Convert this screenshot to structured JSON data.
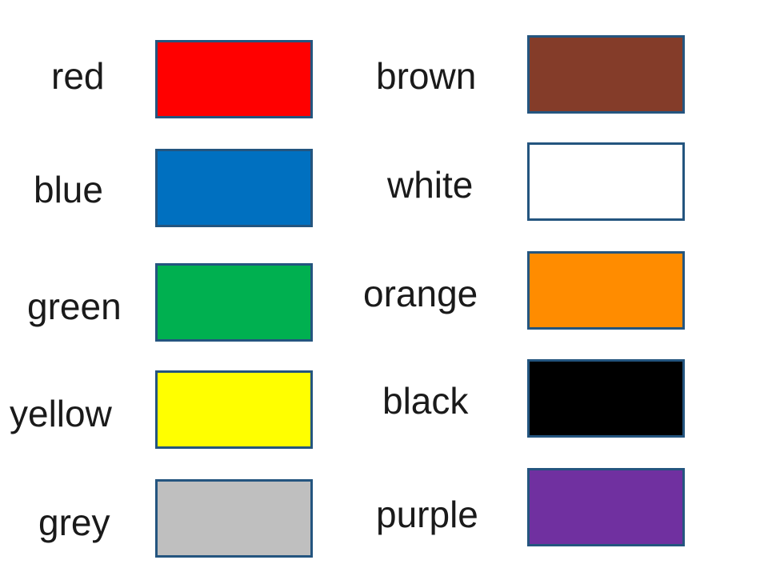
{
  "colors": [
    {
      "label": "red",
      "hex": "#ff0000"
    },
    {
      "label": "blue",
      "hex": "#0070c0"
    },
    {
      "label": "green",
      "hex": "#00b050"
    },
    {
      "label": "yellow",
      "hex": "#ffff00"
    },
    {
      "label": "grey",
      "hex": "#bfbfbf"
    },
    {
      "label": "brown",
      "hex": "#843c29"
    },
    {
      "label": "white",
      "hex": "#ffffff"
    },
    {
      "label": "orange",
      "hex": "#ff8c00"
    },
    {
      "label": "black",
      "hex": "#000000"
    },
    {
      "label": "purple",
      "hex": "#7030a0"
    }
  ]
}
